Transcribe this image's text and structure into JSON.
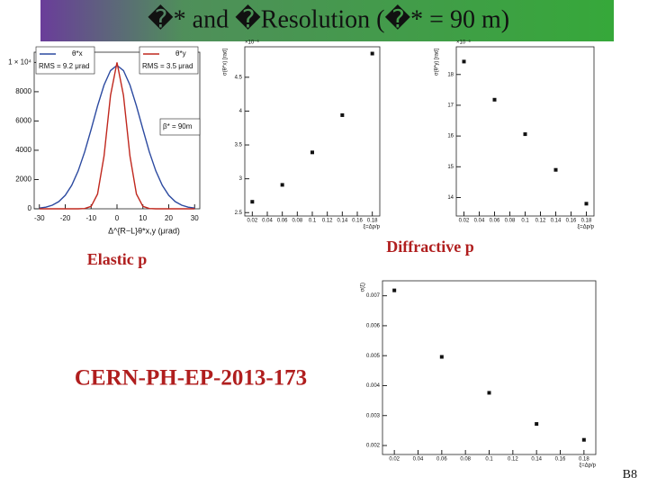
{
  "title": "�* and �Resolution (�* = 90 m)",
  "labels": {
    "elastic": "Elastic p",
    "diffractive": "Diffractive p",
    "reference": "CERN-PH-EP-2013-173",
    "page": "B8"
  },
  "chart_data": [
    {
      "type": "line",
      "x_label": "Δ^{R−L}θ*x,y (μrad)",
      "x": [
        -30,
        -27.5,
        -25,
        -22.5,
        -20,
        -17.5,
        -15,
        -12.5,
        -10,
        -7.5,
        -5,
        -2.5,
        0,
        2.5,
        5,
        7.5,
        10,
        12.5,
        15,
        17.5,
        20,
        22.5,
        25,
        27.5,
        30
      ],
      "series": [
        {
          "name": "θ*x",
          "color": "#2c4aa0",
          "values": [
            48,
            113,
            244,
            492,
            922,
            1605,
            2594,
            3894,
            5428,
            7030,
            8454,
            9445,
            9800,
            9445,
            8454,
            7030,
            5428,
            3894,
            2594,
            1605,
            922,
            492,
            244,
            113,
            48
          ]
        },
        {
          "name": "θ*y",
          "color": "#c0281e",
          "values": [
            0,
            0,
            0,
            0,
            0,
            0,
            0,
            17,
            169,
            1007,
            3606,
            7750,
            10000,
            7750,
            3606,
            1007,
            169,
            17,
            0,
            0,
            0,
            0,
            0,
            0,
            0
          ]
        }
      ],
      "annotations": [
        "RMS = 9.2 μrad",
        "RMS = 3.5 μrad",
        "β* = 90m"
      ],
      "xlim": [
        -32,
        32
      ],
      "xticks": [
        -30,
        -20,
        -10,
        0,
        10,
        20,
        30
      ],
      "ylim": [
        0,
        10700
      ],
      "yticks": [
        0,
        2000,
        4000,
        6000,
        8000,
        {
          "value": 10000,
          "label": "1 × 10⁴"
        }
      ]
    },
    {
      "type": "scatter",
      "y_label": "σ(θ*x) [rad]",
      "x_label": "ξ=Δp/p",
      "y_exponent": "×10⁻⁶",
      "color": "#111111",
      "x": [
        0.02,
        0.06,
        0.1,
        0.14,
        0.18
      ],
      "values": [
        2.66,
        2.91,
        3.39,
        3.94,
        4.85
      ],
      "xlim": [
        0.01,
        0.19
      ],
      "xticks": [
        0.02,
        0.04,
        0.06,
        0.08,
        0.1,
        0.12,
        0.14,
        0.16,
        0.18
      ],
      "ylim": [
        2.45,
        4.95
      ],
      "yticks": [
        2.5,
        3,
        3.5,
        4,
        4.5
      ]
    },
    {
      "type": "scatter",
      "y_label": "σ(θ*y) [rad]",
      "x_label": "ξ=Δp/p",
      "y_exponent": "×10⁻⁶",
      "color": "#111111",
      "x": [
        0.02,
        0.06,
        0.1,
        0.14,
        0.18
      ],
      "values": [
        18.42,
        17.18,
        16.06,
        14.9,
        13.8
      ],
      "xlim": [
        0.01,
        0.19
      ],
      "xticks": [
        0.02,
        0.04,
        0.06,
        0.08,
        0.1,
        0.12,
        0.14,
        0.16,
        0.18
      ],
      "ylim": [
        13.4,
        18.9
      ],
      "yticks": [
        14,
        15,
        16,
        17,
        18
      ]
    },
    {
      "type": "scatter",
      "y_label": "σ(ξ)",
      "x_label": "ξ=Δp/p",
      "color": "#111111",
      "x": [
        0.02,
        0.06,
        0.1,
        0.14,
        0.18
      ],
      "values": [
        0.00718,
        0.00496,
        0.00376,
        0.00272,
        0.00219
      ],
      "xlim": [
        0.01,
        0.19
      ],
      "xticks": [
        0.02,
        0.04,
        0.06,
        0.08,
        0.1,
        0.12,
        0.14,
        0.16,
        0.18
      ],
      "ylim": [
        0.0017,
        0.0075
      ],
      "yticks": [
        0.002,
        0.003,
        0.004,
        0.005,
        0.006,
        0.007
      ]
    }
  ]
}
